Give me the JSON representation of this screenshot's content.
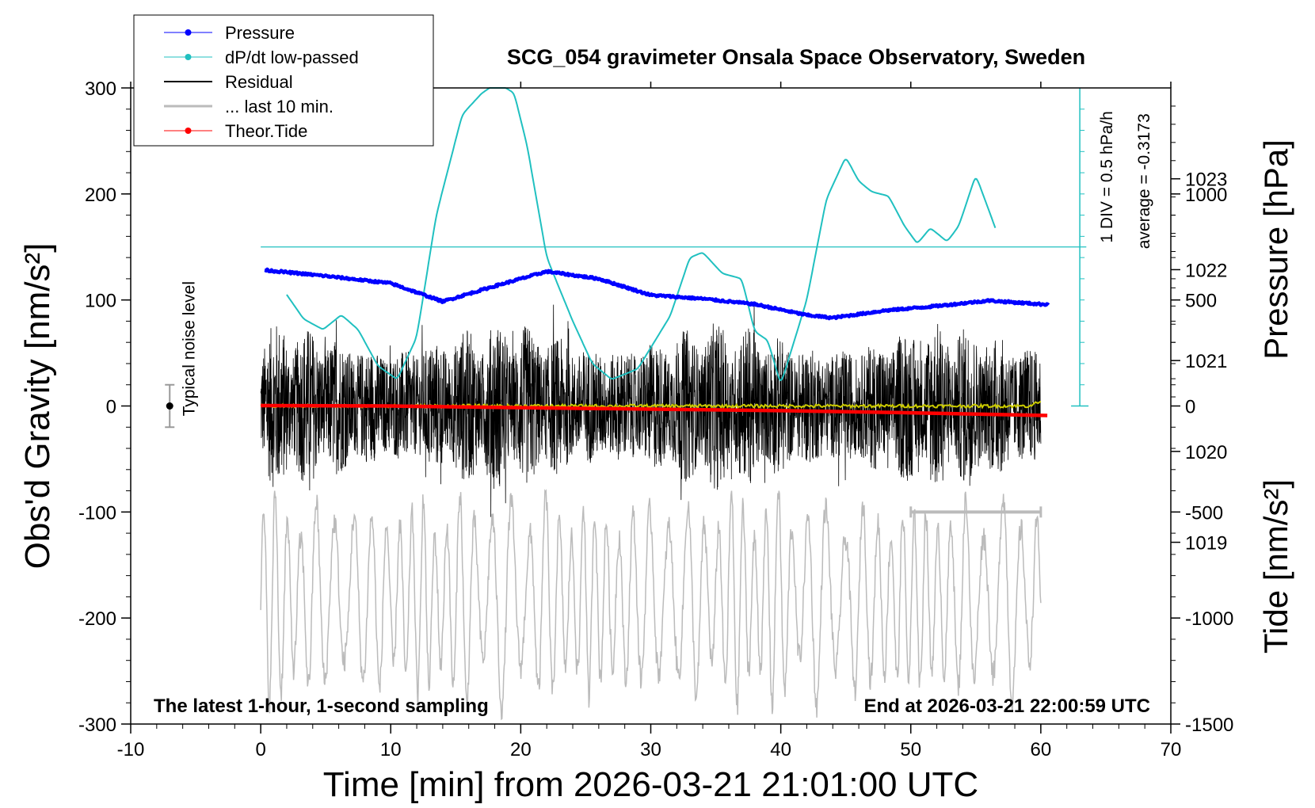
{
  "chart_data": {
    "type": "line",
    "title": "SCG_054 gravimeter Onsala Space Observatory, Sweden",
    "xlabel": "Time [min] from 2026-03-21 21:01:00 UTC",
    "ylabel_left": "Obs'd Gravity [nm/s²]",
    "ylabel_right_top": "Pressure [hPa]",
    "ylabel_right_bottom": "Tide [nm/s²]",
    "xlim": [
      -10,
      70
    ],
    "ylim": [
      -300,
      300
    ],
    "x_ticks": [
      "-10",
      "0",
      "10",
      "20",
      "30",
      "40",
      "50",
      "60",
      "70"
    ],
    "y_ticks": [
      "-300",
      "-200",
      "-100",
      "0",
      "100",
      "200",
      "300"
    ],
    "pressure_axis": {
      "range": [
        1017,
        1024
      ],
      "ticks": [
        "1019",
        "1020",
        "1021",
        "1022",
        "1023"
      ]
    },
    "tide_axis": {
      "range": [
        -1500,
        1500
      ],
      "ticks": [
        "-1500",
        "-1000",
        "-500",
        "0",
        "500",
        "1000"
      ]
    },
    "legend": {
      "placement": "top-left",
      "entries": [
        "Pressure",
        "dP/dt low-passed",
        "Residual",
        "... last 10 min.",
        "Theor.Tide"
      ]
    },
    "series": [
      {
        "name": "Pressure",
        "color": "#0000ff",
        "axis": "pressure",
        "x": [
          0,
          5,
          10,
          14,
          18,
          22,
          26,
          30,
          34,
          38,
          42,
          44,
          48,
          52,
          56,
          60
        ],
        "values": [
          1022.0,
          1021.93,
          1021.85,
          1021.65,
          1021.82,
          1021.98,
          1021.9,
          1021.72,
          1021.68,
          1021.62,
          1021.5,
          1021.47,
          1021.55,
          1021.6,
          1021.66,
          1021.62
        ]
      },
      {
        "name": "dP/dt low-passed",
        "color": "#20c0c0",
        "axis": "dpdt",
        "x": [
          2,
          3.3,
          4.8,
          6.2,
          7.5,
          9,
          10.5,
          12,
          13.5,
          15.5,
          17,
          18.2,
          19.5,
          20.5,
          22,
          24,
          25.5,
          27,
          29,
          31.5,
          33,
          34,
          35.5,
          37,
          38,
          39,
          40,
          42,
          43.5,
          45,
          46,
          47,
          48.3,
          49.5,
          50.5,
          51.5,
          52.8,
          53.7,
          55,
          56.5
        ],
        "values": [
          105,
          82,
          72,
          86,
          72,
          38,
          25,
          65,
          180,
          275,
          295,
          305,
          295,
          245,
          140,
          80,
          40,
          25,
          35,
          85,
          140,
          145,
          125,
          120,
          70,
          62,
          20,
          100,
          195,
          235,
          212,
          202,
          198,
          170,
          153,
          168,
          155,
          170,
          218,
          168
        ]
      },
      {
        "name": "Residual",
        "color": "#000000",
        "axis": "gravity",
        "amplitude": 80
      },
      {
        "name": "... last 10 min.",
        "color": "#bbbbbb",
        "axis": "gravity",
        "segment_x": [
          50,
          60
        ]
      },
      {
        "name": "Theor.Tide",
        "color": "#ff0000",
        "axis": "tide",
        "x": [
          0,
          10,
          20,
          30,
          40,
          50,
          60.5
        ],
        "values": [
          2,
          0,
          -8,
          -15,
          -22,
          -32,
          -45
        ]
      },
      {
        "name": "Residual mean",
        "color": "#cccc00",
        "axis": "gravity",
        "x": [
          0,
          30,
          59,
          60
        ],
        "values": [
          0,
          0,
          0,
          4
        ]
      }
    ],
    "annotations": {
      "noise_label": "Typical noise level",
      "noise_range": [
        -20,
        20
      ],
      "dpdt_scale": "1 DIV = 0.5 hPa/h",
      "dpdt_average": "average = -0.3173",
      "bottom_left": "The latest 1-hour, 1-second sampling",
      "bottom_right": "End at 2026-03-21 22:00:59 UTC"
    }
  }
}
